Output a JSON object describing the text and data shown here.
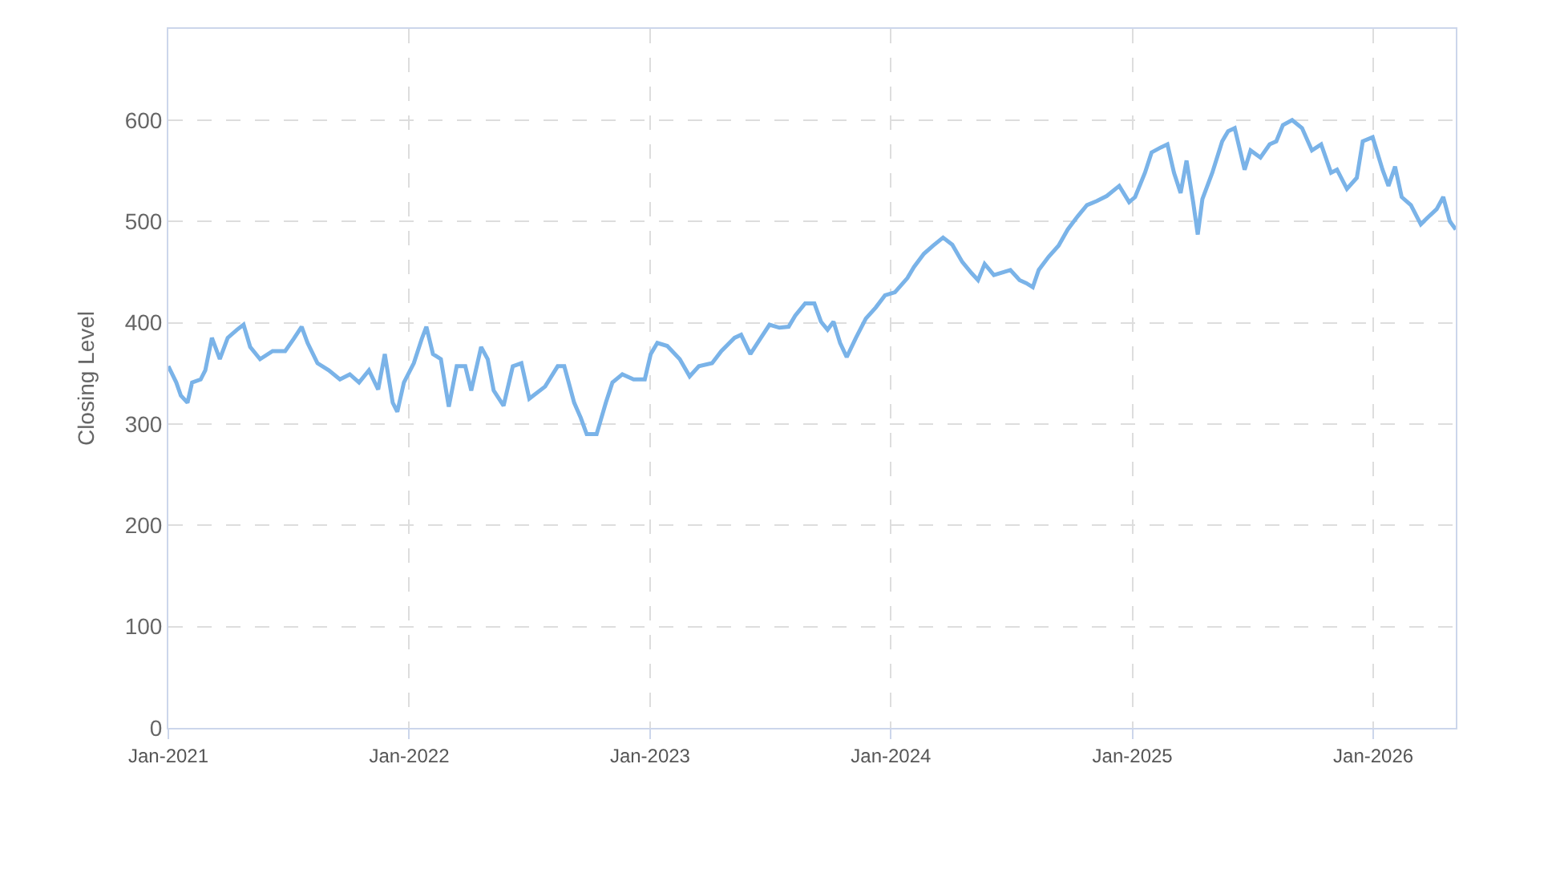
{
  "chart_data": {
    "type": "line",
    "ylabel": "Closing Level",
    "xlim": [
      "2021-01-01",
      "2026-05-06"
    ],
    "xticks": [
      {
        "value": "2021-01-01",
        "label": "Jan-2021"
      },
      {
        "value": "2022-01-01",
        "label": "Jan-2022"
      },
      {
        "value": "2023-01-01",
        "label": "Jan-2023"
      },
      {
        "value": "2024-01-01",
        "label": "Jan-2024"
      },
      {
        "value": "2025-01-01",
        "label": "Jan-2025"
      },
      {
        "value": "2026-01-01",
        "label": "Jan-2026"
      }
    ],
    "ylim": [
      0,
      690
    ],
    "yticks": [
      0,
      100,
      200,
      300,
      400,
      500,
      600
    ],
    "grid": true,
    "marker": "none",
    "line_style": "solid",
    "x": [
      "2021-01-01",
      "2021-01-13",
      "2021-01-20",
      "2021-01-30",
      "2021-02-06",
      "2021-02-19",
      "2021-02-26",
      "2021-03-08",
      "2021-03-20",
      "2021-04-01",
      "2021-04-15",
      "2021-04-25",
      "2021-05-05",
      "2021-05-20",
      "2021-06-08",
      "2021-06-27",
      "2021-07-10",
      "2021-07-22",
      "2021-07-31",
      "2021-08-15",
      "2021-09-01",
      "2021-09-18",
      "2021-10-03",
      "2021-10-17",
      "2021-11-01",
      "2021-11-15",
      "2021-11-25",
      "2021-12-07",
      "2021-12-14",
      "2021-12-24",
      "2022-01-08",
      "2022-01-20",
      "2022-01-27",
      "2022-02-06",
      "2022-02-18",
      "2022-03-02",
      "2022-03-14",
      "2022-03-27",
      "2022-04-05",
      "2022-04-20",
      "2022-04-30",
      "2022-05-09",
      "2022-05-24",
      "2022-06-07",
      "2022-06-20",
      "2022-07-02",
      "2022-07-26",
      "2022-08-14",
      "2022-08-24",
      "2022-09-08",
      "2022-09-18",
      "2022-09-27",
      "2022-10-12",
      "2022-10-26",
      "2022-11-05",
      "2022-11-20",
      "2022-12-07",
      "2022-12-24",
      "2023-01-02",
      "2023-01-12",
      "2023-01-27",
      "2023-02-15",
      "2023-03-02",
      "2023-03-16",
      "2023-04-05",
      "2023-04-19",
      "2023-05-09",
      "2023-05-19",
      "2023-06-02",
      "2023-06-17",
      "2023-07-01",
      "2023-07-16",
      "2023-07-30",
      "2023-08-09",
      "2023-08-24",
      "2023-09-07",
      "2023-09-17",
      "2023-09-27",
      "2023-10-06",
      "2023-10-16",
      "2023-10-26",
      "2023-11-09",
      "2023-11-24",
      "2023-12-09",
      "2023-12-23",
      "2024-01-07",
      "2024-01-26",
      "2024-02-05",
      "2024-02-20",
      "2024-03-05",
      "2024-03-20",
      "2024-04-03",
      "2024-04-18",
      "2024-05-02",
      "2024-05-12",
      "2024-05-22",
      "2024-06-05",
      "2024-06-15",
      "2024-06-30",
      "2024-07-14",
      "2024-07-24",
      "2024-08-03",
      "2024-08-12",
      "2024-08-27",
      "2024-09-11",
      "2024-09-25",
      "2024-10-10",
      "2024-10-24",
      "2024-11-08",
      "2024-11-23",
      "2024-12-12",
      "2024-12-27",
      "2025-01-05",
      "2025-01-20",
      "2025-01-30",
      "2025-02-13",
      "2025-02-23",
      "2025-03-05",
      "2025-03-15",
      "2025-03-24",
      "2025-04-03",
      "2025-04-10",
      "2025-04-17",
      "2025-05-02",
      "2025-05-17",
      "2025-05-26",
      "2025-06-05",
      "2025-06-20",
      "2025-06-29",
      "2025-07-14",
      "2025-07-28",
      "2025-08-07",
      "2025-08-17",
      "2025-08-31",
      "2025-09-15",
      "2025-09-30",
      "2025-10-14",
      "2025-10-29",
      "2025-11-07",
      "2025-11-22",
      "2025-12-07",
      "2025-12-16",
      "2025-12-31",
      "2026-01-15",
      "2026-01-24",
      "2026-02-03",
      "2026-02-13",
      "2026-02-27",
      "2026-03-14",
      "2026-03-28",
      "2026-04-07",
      "2026-04-17",
      "2026-04-27",
      "2026-05-06"
    ],
    "series": [
      {
        "color": "#7ab3e8",
        "values": [
          357,
          341,
          328,
          321,
          341,
          344,
          353,
          385,
          364,
          385,
          393,
          398,
          376,
          364,
          372,
          372,
          384,
          396,
          380,
          360,
          353,
          344,
          349,
          341,
          353,
          334,
          369,
          321,
          312,
          341,
          360,
          384,
          396,
          369,
          364,
          317,
          357,
          357,
          333,
          376,
          364,
          333,
          318,
          357,
          360,
          325,
          337,
          357,
          357,
          321,
          306,
          290,
          290,
          321,
          341,
          349,
          344,
          344,
          369,
          380,
          377,
          364,
          347,
          357,
          360,
          372,
          385,
          388,
          369,
          384,
          398,
          395,
          396,
          407,
          419,
          419,
          401,
          393,
          401,
          380,
          366,
          385,
          404,
          415,
          427,
          430,
          444,
          455,
          468,
          476,
          484,
          477,
          460,
          449,
          442,
          458,
          447,
          449,
          452,
          442,
          439,
          435,
          452,
          465,
          476,
          492,
          505,
          516,
          520,
          525,
          535,
          519,
          524,
          548,
          568,
          573,
          576,
          548,
          528,
          560,
          519,
          487,
          522,
          548,
          579,
          589,
          592,
          551,
          570,
          563,
          576,
          579,
          595,
          600,
          592,
          570,
          576,
          548,
          551,
          532,
          543,
          579,
          583,
          551,
          535,
          554,
          524,
          516,
          497,
          506,
          512,
          524,
          500,
          492
        ]
      }
    ]
  }
}
